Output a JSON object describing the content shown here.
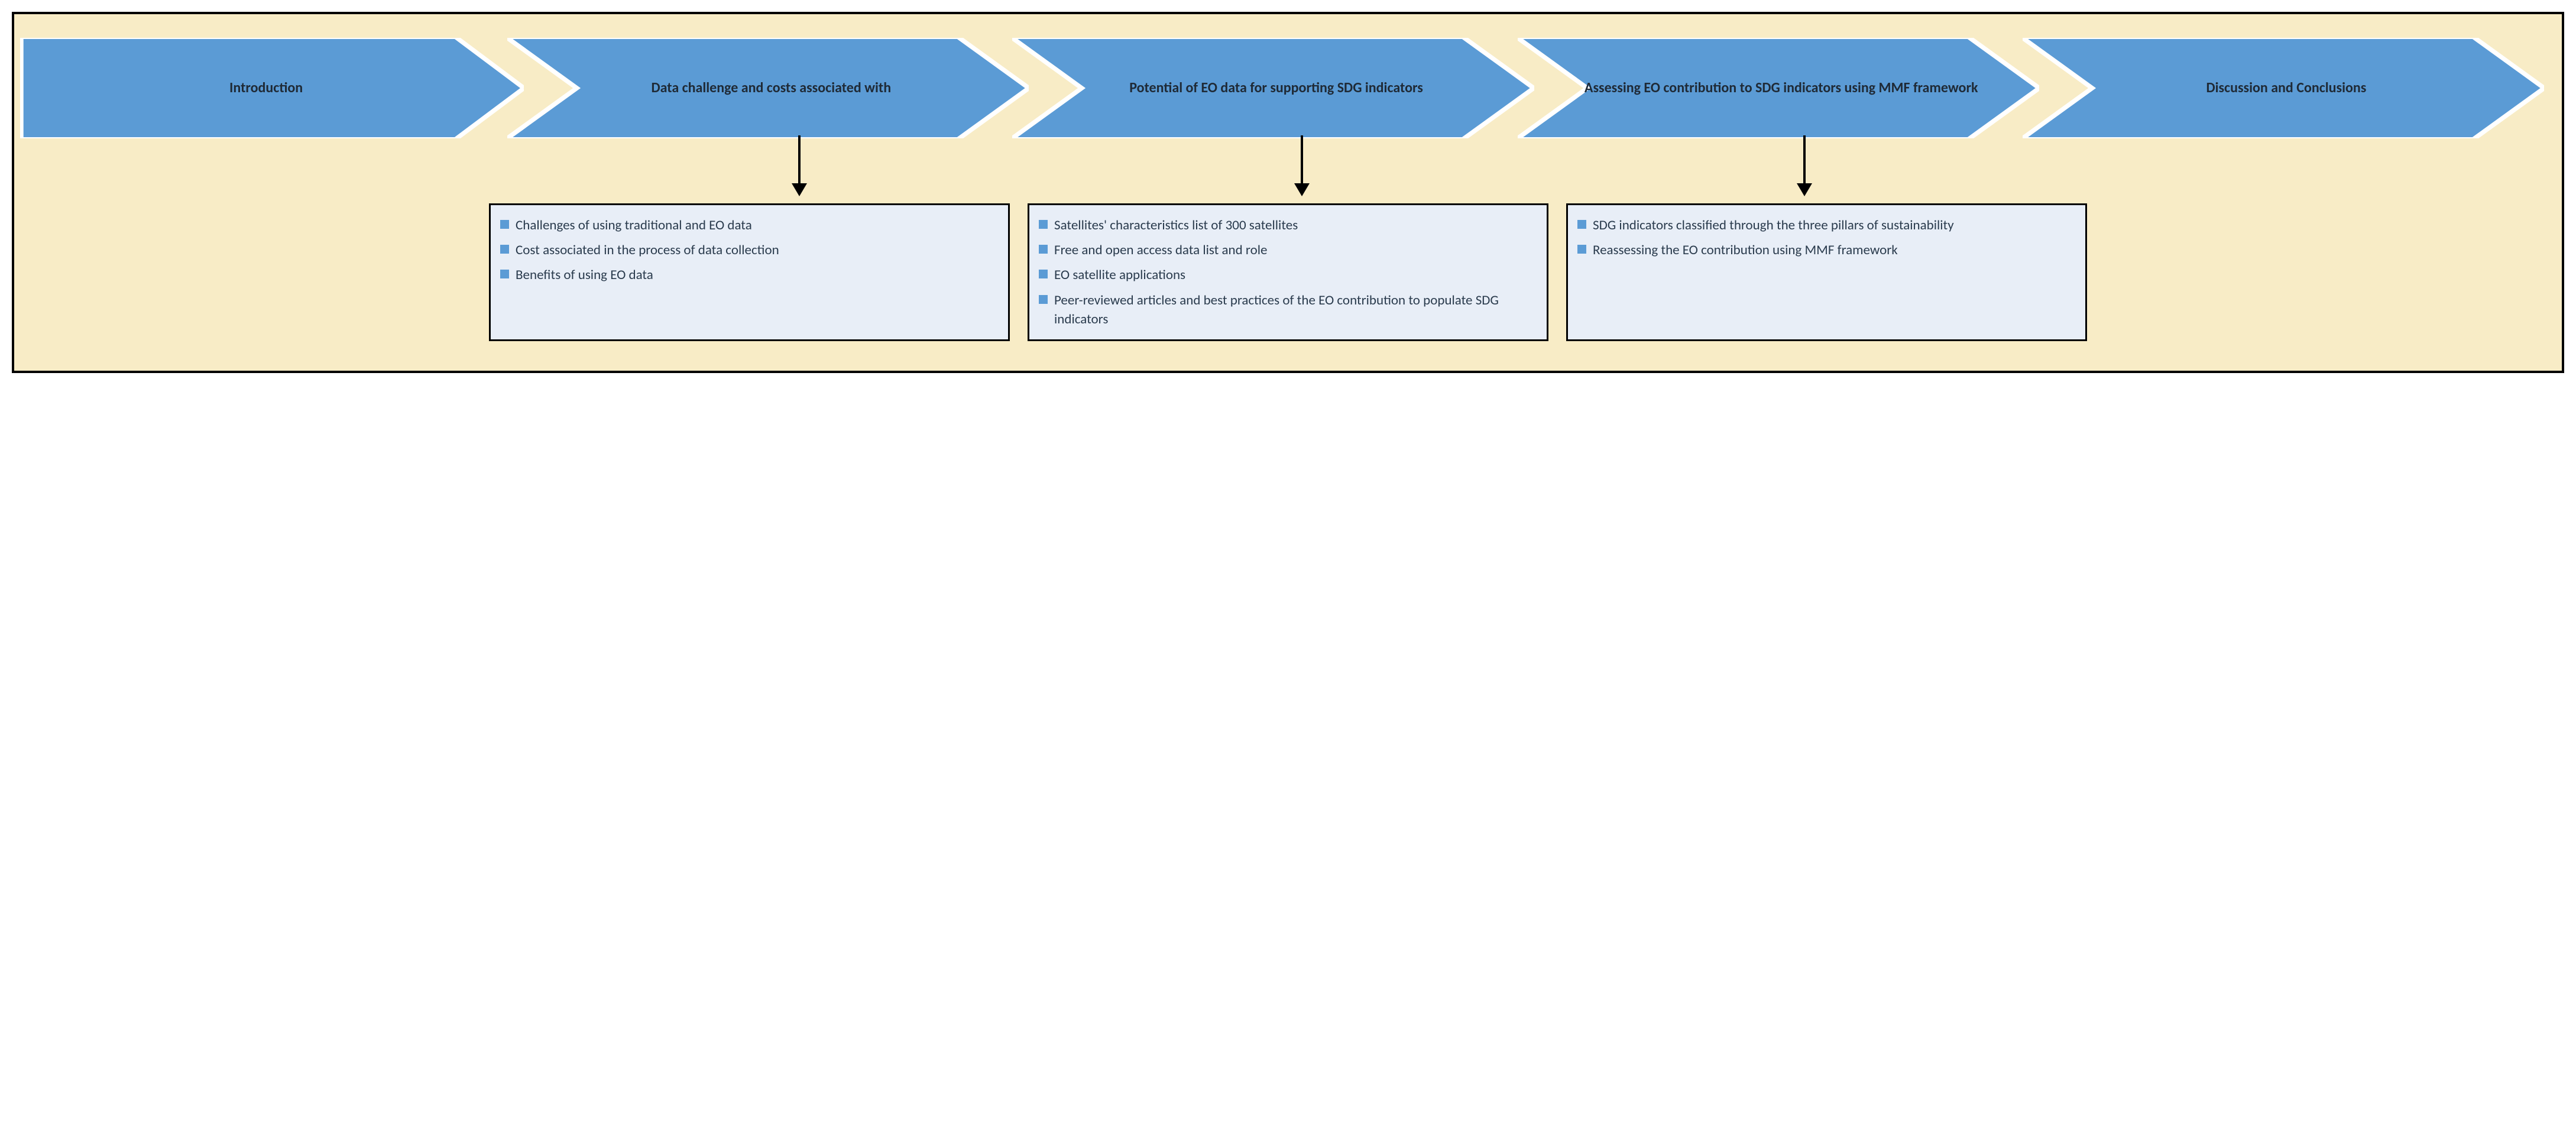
{
  "colors": {
    "frame_bg": "#f8ecc6",
    "chevron_fill": "#5b9bd5",
    "chevron_stroke": "#ffffff",
    "chevron_text": "#1f2a36",
    "box_bg": "#e8eef7",
    "box_text": "#2a3b4d",
    "bullet_fill": "#5b9bd5"
  },
  "layout": {
    "chevron_count": 5,
    "chevron_stroke_width": 4,
    "arrow_positions_pct": [
      30.5,
      50.5,
      70.5
    ]
  },
  "chevrons": [
    {
      "label": "Introduction"
    },
    {
      "label": "Data challenge and costs associated with"
    },
    {
      "label": "Potential of EO data for supporting SDG indica­tors"
    },
    {
      "label": "Assessing EO contribution to SDG indicators using MMF framework"
    },
    {
      "label": "Discussion and Conclusions"
    }
  ],
  "boxes": [
    {
      "items": [
        "Challenges of using tradi­tional and EO data",
        "Cost associated in the pro­cess of data collection",
        "Benefits of using EO data"
      ]
    },
    {
      "items": [
        "Satellites' characteristics list of 300 satellites",
        "Free and open access data list and role",
        "EO satellite applications",
        "Peer-reviewed articles and best practices of the EO contribution to populate SDG indicators"
      ]
    },
    {
      "items": [
        "SDG indicators classified through the three pillars of sustainability",
        "Reassessing the EO contri­bution using MMF framework"
      ]
    }
  ]
}
